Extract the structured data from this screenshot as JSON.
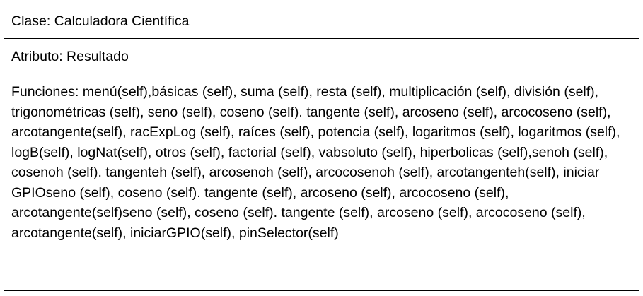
{
  "uml": {
    "class_label": "Clase: Calculadora Científica",
    "attribute_label": "Atributo: Resultado",
    "functions_label": "Funciones: menú(self),básicas (self), suma (self), resta (self), multiplicación (self), división (self), trigonométricas (self), seno (self), coseno (self). tangente (self), arcoseno (self), arcocoseno (self), arcotangente(self), racExpLog (self), raíces (self), potencia (self), logaritmos (self), logaritmos (self), logB(self), logNat(self), otros (self), factorial (self), vabsoluto (self), hiperbolicas (self),senoh (self), cosenoh (self). tangenteh (self), arcosenoh (self), arcocosenoh (self), arcotangenteh(self), iniciar GPIOseno (self), coseno (self). tangente (self), arcoseno (self), arcocoseno (self), arcotangente(self)seno (self), coseno (self). tangente (self), arcoseno (self), arcocoseno (self), arcotangente(self), iniciarGPIO(self), pinSelector(self)"
  }
}
